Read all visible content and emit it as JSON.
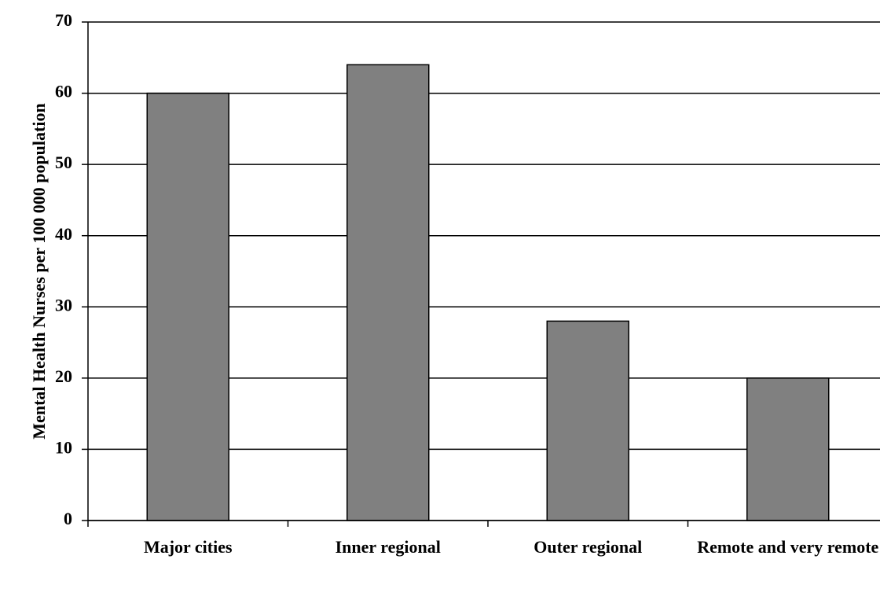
{
  "chart_data": {
    "type": "bar",
    "y_label": "Mental Health Nurses per 100 000 population",
    "categories": [
      "Major cities",
      "Inner regional",
      "Outer regional",
      "Remote and very remote"
    ],
    "values": [
      60,
      64,
      28,
      20
    ],
    "color": "#808080",
    "ylim": [
      0,
      70
    ],
    "yticks": [
      0,
      10,
      20,
      30,
      40,
      50,
      60,
      70
    ],
    "grid": true
  }
}
